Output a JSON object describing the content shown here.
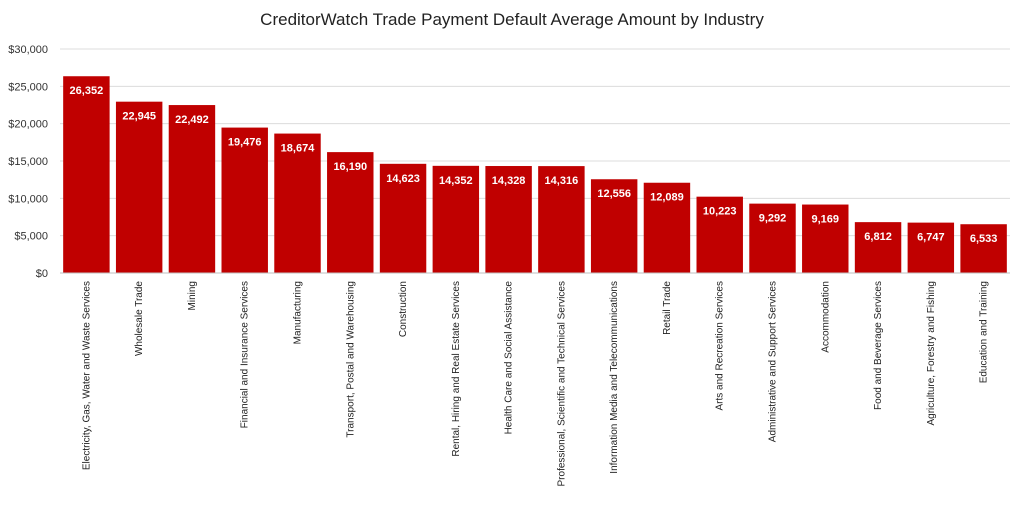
{
  "chart_data": {
    "type": "bar",
    "title": "CreditorWatch Trade Payment Default Average Amount by Industry",
    "xlabel": "",
    "ylabel": "",
    "ylim": [
      0,
      30000
    ],
    "yticks": [
      0,
      5000,
      10000,
      15000,
      20000,
      25000,
      30000
    ],
    "ytick_labels": [
      "$0",
      "$5,000",
      "$10,000",
      "$15,000",
      "$20,000",
      "$25,000",
      "$30,000"
    ],
    "grid": true,
    "legend": "none",
    "bar_color": "#c00000",
    "categories": [
      "Electricity, Gas, Water and Waste Services",
      "Wholesale Trade",
      "Mining",
      "Financial and Insurance Services",
      "Manufacturing",
      "Transport, Postal and Warehousing",
      "Construction",
      "Rental, Hiring and Real Estate Services",
      "Health Care and Social Assistance",
      "Professional, Scientific and Technical Services",
      "Information Media and Telecommunications",
      "Retail Trade",
      "Arts and Recreation Services",
      "Administrative and Support Services",
      "Accommodation",
      "Food and Beverage Services",
      "Agriculture, Forestry and Fishing",
      "Education and Training"
    ],
    "values": [
      26352,
      22945,
      22492,
      19476,
      18674,
      16190,
      14623,
      14352,
      14328,
      14316,
      12556,
      12089,
      10223,
      9292,
      9169,
      6812,
      6747,
      6533
    ],
    "data_labels": [
      "26,352",
      "22,945",
      "22,492",
      "19,476",
      "18,674",
      "16,190",
      "14,623",
      "14,352",
      "14,328",
      "14,316",
      "12,556",
      "12,089",
      "10,223",
      "9,292",
      "9,169",
      "6,812",
      "6,747",
      "6,533"
    ]
  }
}
